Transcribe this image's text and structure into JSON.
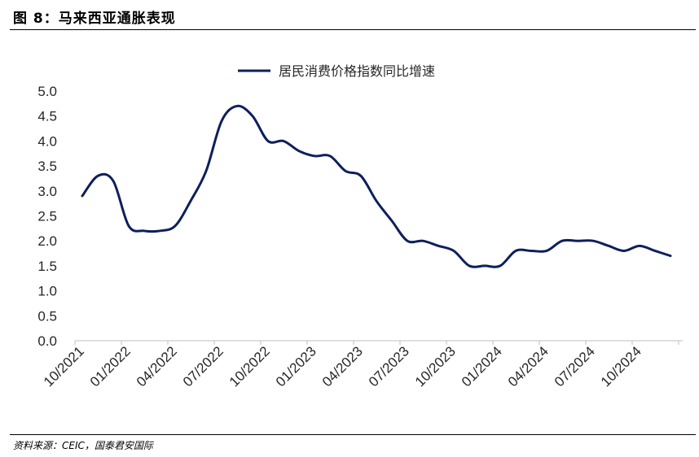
{
  "figure": {
    "title": "图 8：马来西亚通胀表现",
    "source": "资料来源：CEIC，国泰君安国际"
  },
  "colors": {
    "line": "#0d1f5c",
    "axis": "#bfbfbf",
    "text": "#262626"
  },
  "chart_data": {
    "type": "line",
    "legend_position": "top-center",
    "grid": false,
    "ylim": [
      0.0,
      5.0
    ],
    "yticks": [
      "0.0",
      "0.5",
      "1.0",
      "1.5",
      "2.0",
      "2.5",
      "3.0",
      "3.5",
      "4.0",
      "4.5",
      "5.0"
    ],
    "xticks": [
      "10/2021",
      "01/2022",
      "04/2022",
      "07/2022",
      "10/2022",
      "01/2023",
      "04/2023",
      "07/2023",
      "10/2023",
      "01/2024",
      "04/2024",
      "07/2024",
      "10/2024"
    ],
    "series": [
      {
        "name": "居民消费价格指数同比增速",
        "x": [
          "10/2021",
          "11/2021",
          "12/2021",
          "01/2022",
          "02/2022",
          "03/2022",
          "04/2022",
          "05/2022",
          "06/2022",
          "07/2022",
          "08/2022",
          "09/2022",
          "10/2022",
          "11/2022",
          "12/2022",
          "01/2023",
          "02/2023",
          "03/2023",
          "04/2023",
          "05/2023",
          "06/2023",
          "07/2023",
          "08/2023",
          "09/2023",
          "10/2023",
          "11/2023",
          "12/2023",
          "01/2024",
          "02/2024",
          "03/2024",
          "04/2024",
          "05/2024",
          "06/2024",
          "07/2024",
          "08/2024",
          "09/2024",
          "10/2024",
          "11/2024",
          "12/2024"
        ],
        "values": [
          2.9,
          3.3,
          3.2,
          2.3,
          2.2,
          2.2,
          2.3,
          2.8,
          3.4,
          4.4,
          4.7,
          4.5,
          4.0,
          4.0,
          3.8,
          3.7,
          3.7,
          3.4,
          3.3,
          2.8,
          2.4,
          2.0,
          2.0,
          1.9,
          1.8,
          1.5,
          1.5,
          1.5,
          1.8,
          1.8,
          1.8,
          2.0,
          2.0,
          2.0,
          1.9,
          1.8,
          1.9,
          1.8,
          1.7
        ]
      }
    ]
  }
}
